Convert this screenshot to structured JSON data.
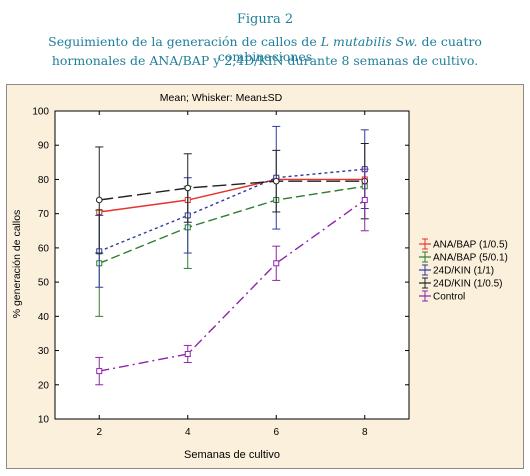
{
  "figure": {
    "label": "Figura 2",
    "caption_line1_pre": "Seguimiento de la generación de callos de ",
    "caption_line1_italic": "L mutabilis Sw.",
    "caption_line1_post": " de cuatro combinaciones",
    "caption_line2": "hormonales de ANA/BAP y 2,4D/KIN durante 8 semanas de cultivo."
  },
  "chart_data": {
    "type": "line",
    "title": "Mean; Whisker: Mean±SD",
    "xlabel": "Semanas de cultivo",
    "ylabel": "% generación de callos",
    "x": [
      2,
      4,
      6,
      8
    ],
    "xlim": [
      1,
      9
    ],
    "ylim": [
      10,
      100
    ],
    "yticks": [
      10,
      20,
      30,
      40,
      50,
      60,
      70,
      80,
      90,
      100
    ],
    "xticks": [
      2,
      4,
      6,
      8
    ],
    "grid": false,
    "legend_position": "right",
    "series": [
      {
        "name": "ANA/BAP (1/0.5)",
        "color": "#e8322a",
        "dash": "solid",
        "marker": "square",
        "values": [
          70.5,
          74,
          80,
          80
        ],
        "sd": [
          0,
          0,
          0,
          0
        ]
      },
      {
        "name": "ANA/BAP (5/0.1)",
        "color": "#2e7d32",
        "dash": "long",
        "marker": "square",
        "values": [
          55.5,
          66,
          74,
          78
        ],
        "sd": [
          15.5,
          12,
          0,
          0
        ]
      },
      {
        "name": "24D/KIN (1/1)",
        "color": "#2e3a9e",
        "dash": "dot",
        "marker": "square",
        "values": [
          59,
          69.5,
          80.5,
          83
        ],
        "sd": [
          10.5,
          11,
          15,
          11.5
        ]
      },
      {
        "name": "24D/KIN (1/0.5)",
        "color": "#222222",
        "dash": "longlong",
        "marker": "circle",
        "values": [
          74,
          77.5,
          79.5,
          79.5
        ],
        "sd": [
          15.5,
          10,
          9,
          11
        ]
      },
      {
        "name": "Control",
        "color": "#8e24aa",
        "dash": "dashdot",
        "marker": "square",
        "values": [
          24,
          29,
          55.5,
          74
        ],
        "sd": [
          4,
          2.5,
          5,
          9
        ]
      }
    ]
  }
}
